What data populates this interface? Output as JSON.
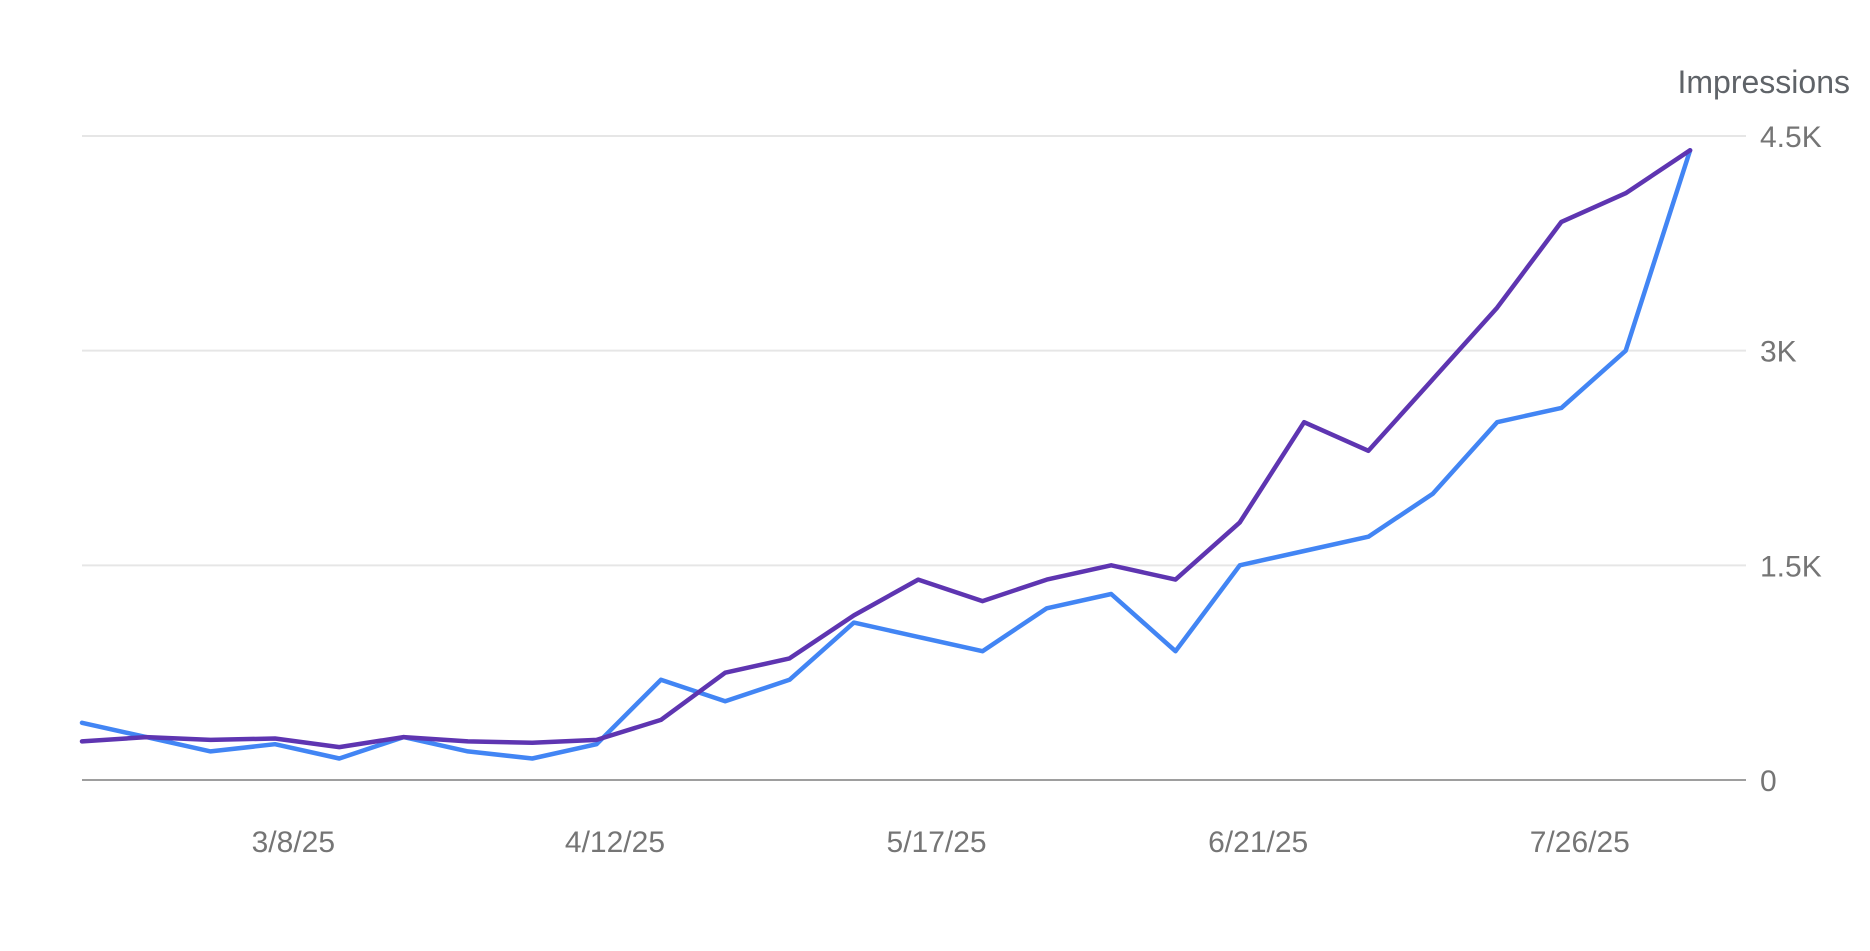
{
  "chart_data": {
    "type": "line",
    "title": "",
    "xlabel": "",
    "ylabel": "Impressions",
    "ylim": [
      0,
      4500
    ],
    "y_ticks": [
      {
        "value": 0,
        "label": "0"
      },
      {
        "value": 1500,
        "label": "1.5K"
      },
      {
        "value": 3000,
        "label": "3K"
      },
      {
        "value": 4500,
        "label": "4.5K"
      }
    ],
    "x_ticks": [
      "3/8/25",
      "4/12/25",
      "5/17/25",
      "6/21/25",
      "7/26/25"
    ],
    "grid": true,
    "legend": "none",
    "x": [
      "2/13/25",
      "2/20/25",
      "2/27/25",
      "3/6/25",
      "3/13/25",
      "3/20/25",
      "3/27/25",
      "4/3/25",
      "4/10/25",
      "4/17/25",
      "4/24/25",
      "5/1/25",
      "5/8/25",
      "5/15/25",
      "5/22/25",
      "5/29/25",
      "6/5/25",
      "6/12/25",
      "6/19/25",
      "6/26/25",
      "7/3/25",
      "7/10/25",
      "7/17/25",
      "7/24/25",
      "7/31/25",
      "8/7/25"
    ],
    "series": [
      {
        "color": "#5e35b1",
        "values": [
          270,
          300,
          280,
          290,
          230,
          300,
          270,
          260,
          280,
          420,
          750,
          850,
          1150,
          1400,
          1250,
          1400,
          1500,
          1400,
          1800,
          2500,
          2300,
          2800,
          3300,
          3900,
          4100,
          4400
        ]
      },
      {
        "color": "#4285f4",
        "values": [
          400,
          300,
          200,
          250,
          150,
          300,
          200,
          150,
          250,
          700,
          550,
          700,
          1100,
          1000,
          900,
          1200,
          1300,
          900,
          1500,
          1600,
          1700,
          2000,
          2500,
          2600,
          3000,
          4400
        ]
      }
    ]
  }
}
